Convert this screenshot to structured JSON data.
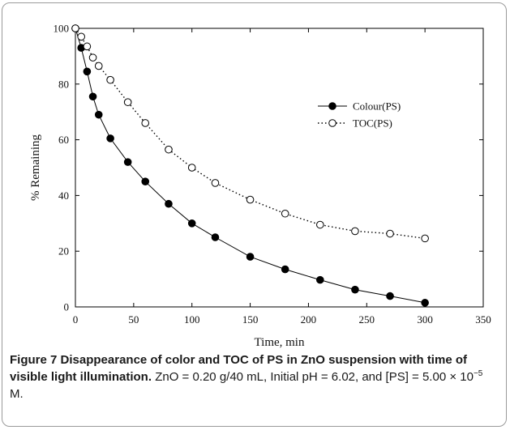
{
  "chart_data": {
    "type": "line",
    "xlabel": "Time, min",
    "ylabel": "% Remaining",
    "xlim": [
      0,
      350
    ],
    "ylim": [
      0,
      100
    ],
    "xticks": [
      "0",
      "50",
      "100",
      "150",
      "200",
      "250",
      "300",
      "350"
    ],
    "yticks": [
      "0",
      "20",
      "40",
      "60",
      "80",
      "100"
    ],
    "legend_position": "right",
    "grid": false,
    "series": [
      {
        "name": "Colour(PS)",
        "marker": "filled-circle",
        "line": "solid",
        "x": [
          0,
          5,
          10,
          15,
          20,
          30,
          45,
          60,
          80,
          100,
          120,
          150,
          180,
          210,
          240,
          270,
          300
        ],
        "y": [
          100,
          93,
          84.5,
          75.5,
          69,
          60.5,
          52,
          45,
          37,
          30,
          25,
          18,
          13.5,
          9.7,
          6.2,
          3.9,
          1.5
        ]
      },
      {
        "name": "TOC(PS)",
        "marker": "open-circle",
        "line": "dotted",
        "x": [
          0,
          5,
          10,
          15,
          20,
          30,
          45,
          60,
          80,
          100,
          120,
          150,
          180,
          210,
          240,
          270,
          300
        ],
        "y": [
          100,
          97,
          93.5,
          89.5,
          86.5,
          81.5,
          73.5,
          66,
          56.5,
          50,
          44.5,
          38.5,
          33.5,
          29.5,
          27.2,
          26.3,
          24.6
        ]
      }
    ]
  },
  "caption": {
    "label": "Figure 7",
    "title": "Disappearance of color and TOC of PS in ZnO suspension with time of visible light illumination.",
    "details_before_exp": "ZnO = 0.20 g/40 mL, Initial pH = 6.02, and [PS] = 5.00 × 10",
    "exponent": "−5",
    "details_after_exp": " M."
  }
}
